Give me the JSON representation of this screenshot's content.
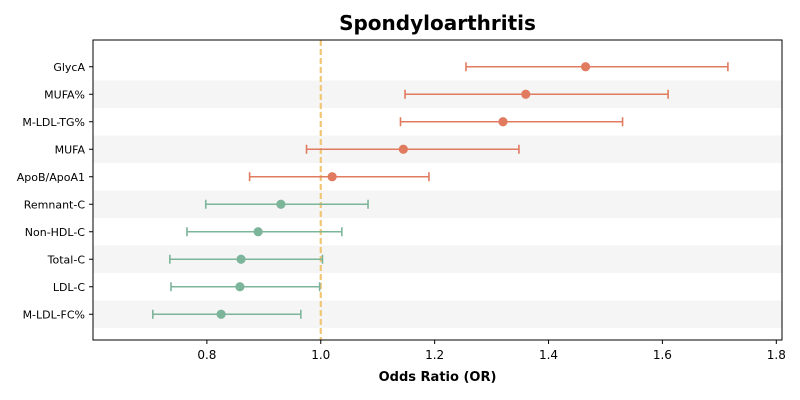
{
  "chart_data": {
    "type": "forest",
    "title": "Spondyloarthritis",
    "xlabel": "Odds Ratio (OR)",
    "ylabel": "",
    "xlim": [
      0.6,
      1.81
    ],
    "xticks": [
      0.8,
      1.0,
      1.2,
      1.4,
      1.6,
      1.8
    ],
    "xtick_labels": [
      "0.8",
      "1.0",
      "1.2",
      "1.4",
      "1.6",
      "1.8"
    ],
    "reference_line": 1.0,
    "grid": false,
    "colors": {
      "risk": "#e07b5f",
      "protective": "#7db59a",
      "reference": "#f0c674",
      "band": "#f5f5f5"
    },
    "items": [
      {
        "label": "GlycA",
        "or": 1.465,
        "lower": 1.255,
        "upper": 1.715,
        "group": "risk"
      },
      {
        "label": "MUFA%",
        "or": 1.36,
        "lower": 1.148,
        "upper": 1.61,
        "group": "risk"
      },
      {
        "label": "M-LDL-TG%",
        "or": 1.32,
        "lower": 1.14,
        "upper": 1.53,
        "group": "risk"
      },
      {
        "label": "MUFA",
        "or": 1.145,
        "lower": 0.975,
        "upper": 1.348,
        "group": "risk"
      },
      {
        "label": "ApoB/ApoA1",
        "or": 1.02,
        "lower": 0.875,
        "upper": 1.19,
        "group": "risk"
      },
      {
        "label": "Remnant-C",
        "or": 0.93,
        "lower": 0.798,
        "upper": 1.083,
        "group": "protective"
      },
      {
        "label": "Non-HDL-C",
        "or": 0.89,
        "lower": 0.765,
        "upper": 1.037,
        "group": "protective"
      },
      {
        "label": "Total-C",
        "or": 0.86,
        "lower": 0.735,
        "upper": 1.003,
        "group": "protective"
      },
      {
        "label": "LDL-C",
        "or": 0.858,
        "lower": 0.737,
        "upper": 0.998,
        "group": "protective"
      },
      {
        "label": "M-LDL-FC%",
        "or": 0.825,
        "lower": 0.705,
        "upper": 0.965,
        "group": "protective"
      }
    ]
  }
}
